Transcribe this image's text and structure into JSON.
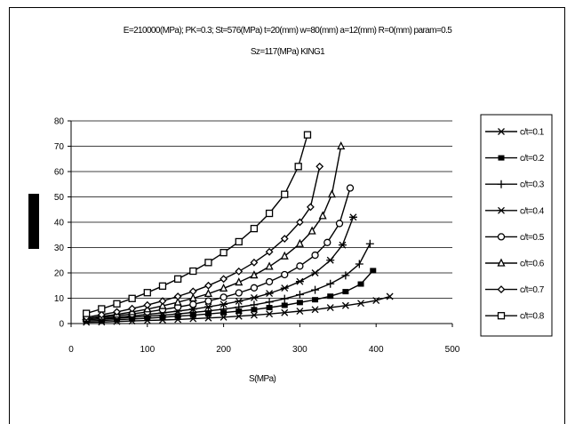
{
  "chart_data": {
    "type": "line",
    "title": "E=210000(MPa);  PK=0.3;  St=576(MPa)  t=20(mm)  w=80(mm)  a=12(mm)  R=0(mm)  param=0.5",
    "subtitle": "Sz=117(MPa)  KING1",
    "xlabel": "S(MPa)",
    "ylabel": "",
    "xlim": [
      0,
      500
    ],
    "ylim": [
      0,
      80
    ],
    "xticks": [
      "0",
      "100",
      "200",
      "300",
      "400",
      "500"
    ],
    "yticks": [
      "0",
      "10",
      "20",
      "30",
      "40",
      "50",
      "60",
      "70",
      "80"
    ],
    "grid": "horizontal",
    "legend": "right",
    "series": [
      {
        "name": "c/t=0.1",
        "marker": "x",
        "x": [
          20,
          40,
          60,
          80,
          100,
          120,
          140,
          160,
          180,
          200,
          220,
          240,
          260,
          280,
          300,
          320,
          340,
          360,
          380,
          400,
          418
        ],
        "y": [
          0.5,
          0.6,
          0.8,
          1.0,
          1.2,
          1.4,
          1.6,
          1.9,
          2.2,
          2.5,
          2.9,
          3.3,
          3.8,
          4.3,
          4.9,
          5.5,
          6.3,
          7.1,
          8.0,
          9.1,
          10.7
        ]
      },
      {
        "name": "c/t=0.2",
        "marker": "square-filled",
        "x": [
          20,
          40,
          60,
          80,
          100,
          120,
          140,
          160,
          180,
          200,
          220,
          240,
          260,
          280,
          300,
          320,
          340,
          360,
          380,
          396
        ],
        "y": [
          1.0,
          1.2,
          1.5,
          1.8,
          2.1,
          2.5,
          2.9,
          3.3,
          3.8,
          4.3,
          4.9,
          5.5,
          6.3,
          7.2,
          8.3,
          9.4,
          10.8,
          12.6,
          15.6,
          20.9
        ]
      },
      {
        "name": "c/t=0.3",
        "marker": "plus",
        "x": [
          20,
          40,
          60,
          80,
          100,
          120,
          140,
          160,
          180,
          200,
          220,
          240,
          260,
          280,
          300,
          320,
          340,
          360,
          378,
          392
        ],
        "y": [
          1.5,
          1.8,
          2.1,
          2.5,
          2.9,
          3.3,
          3.8,
          4.4,
          5.0,
          5.7,
          6.5,
          7.4,
          8.5,
          9.8,
          11.4,
          13.3,
          15.7,
          19.0,
          23.5,
          31.5
        ]
      },
      {
        "name": "c/t=0.4",
        "marker": "asterisk",
        "x": [
          20,
          40,
          60,
          80,
          100,
          120,
          140,
          160,
          180,
          200,
          220,
          240,
          260,
          280,
          300,
          320,
          340,
          356,
          370
        ],
        "y": [
          1.5,
          2.0,
          2.5,
          3.0,
          3.6,
          4.2,
          4.9,
          5.7,
          6.6,
          7.6,
          8.8,
          10.2,
          11.9,
          14.0,
          16.6,
          20.0,
          25.0,
          31.0,
          42.0
        ]
      },
      {
        "name": "c/t=0.5",
        "marker": "circle",
        "x": [
          20,
          40,
          60,
          80,
          100,
          120,
          140,
          160,
          180,
          200,
          220,
          240,
          260,
          280,
          300,
          320,
          336,
          352,
          366
        ],
        "y": [
          2.0,
          2.5,
          3.1,
          3.8,
          4.6,
          5.5,
          6.5,
          7.6,
          8.9,
          10.4,
          12.1,
          14.1,
          16.5,
          19.3,
          22.7,
          27.0,
          32.0,
          39.5,
          53.5
        ]
      },
      {
        "name": "c/t=0.6",
        "marker": "triangle",
        "x": [
          20,
          40,
          60,
          80,
          100,
          120,
          140,
          160,
          180,
          200,
          220,
          240,
          260,
          280,
          300,
          316,
          330,
          342,
          354
        ],
        "y": [
          2.0,
          2.8,
          3.6,
          4.6,
          5.7,
          7.0,
          8.4,
          10.0,
          11.8,
          13.9,
          16.3,
          19.1,
          22.5,
          26.6,
          31.5,
          36.5,
          42.5,
          51.0,
          70.0
        ]
      },
      {
        "name": "c/t=0.7",
        "marker": "diamond",
        "x": [
          20,
          40,
          60,
          80,
          100,
          120,
          140,
          160,
          180,
          200,
          220,
          240,
          260,
          280,
          300,
          314,
          326
        ],
        "y": [
          2.5,
          3.5,
          4.6,
          5.9,
          7.3,
          8.9,
          10.7,
          12.7,
          15.0,
          17.6,
          20.6,
          24.1,
          28.3,
          33.5,
          40.0,
          46.0,
          62.0
        ]
      },
      {
        "name": "c/t=0.8",
        "marker": "square",
        "x": [
          20,
          40,
          60,
          80,
          100,
          120,
          140,
          160,
          180,
          200,
          220,
          240,
          260,
          280,
          298,
          310
        ],
        "y": [
          4.0,
          5.8,
          7.8,
          9.9,
          12.2,
          14.8,
          17.6,
          20.7,
          24.1,
          28.0,
          32.3,
          37.5,
          43.5,
          51.0,
          62.0,
          74.5
        ]
      }
    ]
  }
}
